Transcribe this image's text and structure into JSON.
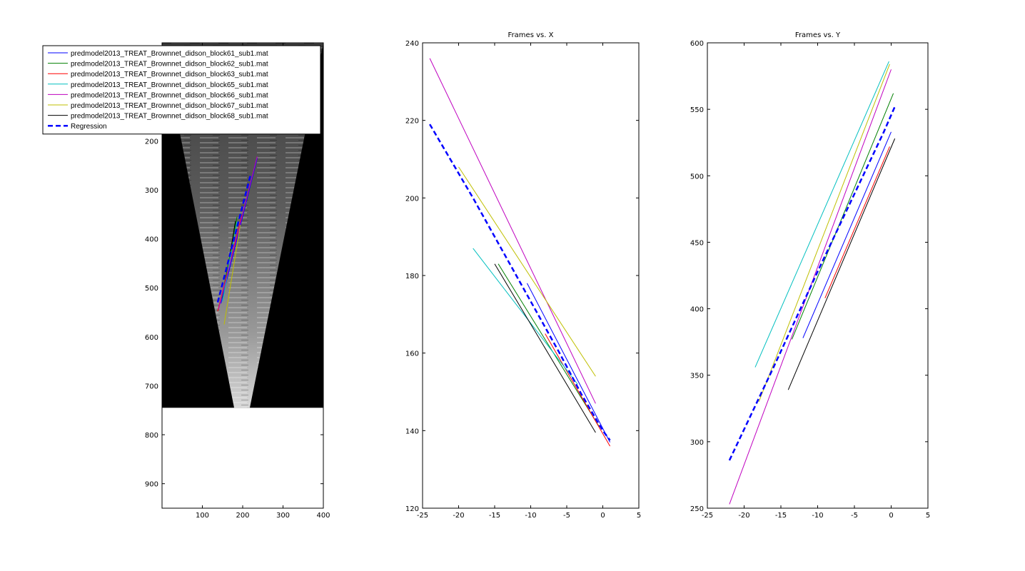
{
  "figure": {
    "legend_entries": [
      {
        "name": "predmodel2013_TREAT_Brownnet_didson_block61_sub1.mat",
        "color": "#0000ff",
        "style": "solid"
      },
      {
        "name": "predmodel2013_TREAT_Brownnet_didson_block62_sub1.mat",
        "color": "#008000",
        "style": "solid"
      },
      {
        "name": "predmodel2013_TREAT_Brownnet_didson_block63_sub1.mat",
        "color": "#ff0000",
        "style": "solid"
      },
      {
        "name": "predmodel2013_TREAT_Brownnet_didson_block65_sub1.mat",
        "color": "#00bfbf",
        "style": "solid"
      },
      {
        "name": "predmodel2013_TREAT_Brownnet_didson_block66_sub1.mat",
        "color": "#bf00bf",
        "style": "solid"
      },
      {
        "name": "predmodel2013_TREAT_Brownnet_didson_block67_sub1.mat",
        "color": "#bfbf00",
        "style": "solid"
      },
      {
        "name": "predmodel2013_TREAT_Brownnet_didson_block68_sub1.mat",
        "color": "#000000",
        "style": "solid"
      },
      {
        "name": "Regression",
        "color": "#0000ff",
        "style": "dashed"
      }
    ]
  },
  "chart_data": [
    {
      "type": "line",
      "title": "",
      "xlabel": "",
      "ylabel": "",
      "xlim": [
        0,
        400
      ],
      "ylim": [
        950,
        0
      ],
      "xticks": [
        100,
        200,
        300,
        400
      ],
      "yticks": [
        100,
        200,
        300,
        400,
        500,
        600,
        700,
        800,
        900
      ],
      "background_image": "sonar-fan",
      "image_extent": {
        "x": [
          0,
          400
        ],
        "y": [
          0,
          745
        ]
      },
      "legend_placement": "top-left",
      "series": [
        {
          "name": "predmodel2013_TREAT_Brownnet_didson_block61_sub1.mat",
          "color": "#0000ff",
          "x": [
            146,
            236
          ],
          "y": [
            532,
            235
          ]
        },
        {
          "name": "predmodel2013_TREAT_Brownnet_didson_block62_sub1.mat",
          "color": "#008000",
          "x": [
            148,
            186
          ],
          "y": [
            522,
            355
          ]
        },
        {
          "name": "predmodel2013_TREAT_Brownnet_didson_block63_sub1.mat",
          "color": "#ff0000",
          "x": [
            138,
            198
          ],
          "y": [
            548,
            352
          ]
        },
        {
          "name": "predmodel2013_TREAT_Brownnet_didson_block65_sub1.mat",
          "color": "#00bfbf",
          "x": [
            150,
            186
          ],
          "y": [
            528,
            365
          ]
        },
        {
          "name": "predmodel2013_TREAT_Brownnet_didson_block66_sub1.mat",
          "color": "#bf00bf",
          "x": [
            140,
            236
          ],
          "y": [
            544,
            232
          ]
        },
        {
          "name": "predmodel2013_TREAT_Brownnet_didson_block67_sub1.mat",
          "color": "#bfbf00",
          "x": [
            154,
            194
          ],
          "y": [
            575,
            372
          ]
        },
        {
          "name": "predmodel2013_TREAT_Brownnet_didson_block68_sub1.mat",
          "color": "#000000",
          "x": [
            170,
            182
          ],
          "y": [
            425,
            364
          ]
        },
        {
          "name": "Regression",
          "color": "#0000ff",
          "dashed": true,
          "x": [
            138,
            220
          ],
          "y": [
            530,
            268
          ]
        }
      ]
    },
    {
      "type": "line",
      "title": "Frames vs. X",
      "xlabel": "",
      "ylabel": "",
      "xlim": [
        -25,
        5
      ],
      "ylim": [
        120,
        240
      ],
      "xticks": [
        -25,
        -20,
        -15,
        -10,
        -5,
        0,
        5
      ],
      "yticks": [
        120,
        140,
        160,
        180,
        200,
        220,
        240
      ],
      "series": [
        {
          "name": "predmodel2013_TREAT_Brownnet_didson_block61_sub1.mat",
          "color": "#0000ff",
          "x": [
            -10.5,
            1.0
          ],
          "y": [
            178,
            137
          ]
        },
        {
          "name": "predmodel2013_TREAT_Brownnet_didson_block62_sub1.mat",
          "color": "#008000",
          "x": [
            -14.5,
            -0.5
          ],
          "y": [
            183,
            141
          ]
        },
        {
          "name": "predmodel2013_TREAT_Brownnet_didson_block63_sub1.mat",
          "color": "#ff0000",
          "x": [
            -8.0,
            1.0
          ],
          "y": [
            165,
            136
          ]
        },
        {
          "name": "predmodel2013_TREAT_Brownnet_didson_block65_sub1.mat",
          "color": "#00bfbf",
          "x": [
            -18.0,
            -3.5
          ],
          "y": [
            187,
            152
          ]
        },
        {
          "name": "predmodel2013_TREAT_Brownnet_didson_block66_sub1.mat",
          "color": "#bf00bf",
          "x": [
            -24.0,
            -1.0
          ],
          "y": [
            236,
            147
          ]
        },
        {
          "name": "predmodel2013_TREAT_Brownnet_didson_block67_sub1.mat",
          "color": "#bfbf00",
          "x": [
            -20.0,
            -1.0
          ],
          "y": [
            208,
            154
          ]
        },
        {
          "name": "predmodel2013_TREAT_Brownnet_didson_block68_sub1.mat",
          "color": "#000000",
          "x": [
            -15.0,
            -1.0
          ],
          "y": [
            183,
            139.5
          ]
        },
        {
          "name": "Regression",
          "color": "#0000ff",
          "dashed": true,
          "x": [
            -24,
            -21,
            -18,
            -15,
            -12,
            -9,
            -6,
            -3,
            0,
            1
          ],
          "y": [
            219,
            209.5,
            200,
            190,
            180,
            170,
            160,
            149.5,
            140,
            137.5
          ]
        }
      ]
    },
    {
      "type": "line",
      "title": "Frames vs. Y",
      "xlabel": "",
      "ylabel": "",
      "xlim": [
        -25,
        5
      ],
      "ylim": [
        250,
        600
      ],
      "xticks": [
        -25,
        -20,
        -15,
        -10,
        -5,
        0,
        5
      ],
      "yticks": [
        250,
        300,
        350,
        400,
        450,
        500,
        550,
        600
      ],
      "series": [
        {
          "name": "predmodel2013_TREAT_Brownnet_didson_block61_sub1.mat",
          "color": "#0000ff",
          "x": [
            -12.0,
            0.0
          ],
          "y": [
            378,
            533
          ]
        },
        {
          "name": "predmodel2013_TREAT_Brownnet_didson_block62_sub1.mat",
          "color": "#008000",
          "x": [
            -13.5,
            0.3
          ],
          "y": [
            377,
            562
          ]
        },
        {
          "name": "predmodel2013_TREAT_Brownnet_didson_block63_sub1.mat",
          "color": "#ff0000",
          "x": [
            -9.0,
            -0.2
          ],
          "y": [
            408,
            522
          ]
        },
        {
          "name": "predmodel2013_TREAT_Brownnet_didson_block65_sub1.mat",
          "color": "#00bfbf",
          "x": [
            -18.5,
            -0.3
          ],
          "y": [
            356,
            586
          ]
        },
        {
          "name": "predmodel2013_TREAT_Brownnet_didson_block66_sub1.mat",
          "color": "#bf00bf",
          "x": [
            -22.0,
            0.0
          ],
          "y": [
            253,
            580
          ]
        },
        {
          "name": "predmodel2013_TREAT_Brownnet_didson_block67_sub1.mat",
          "color": "#bfbf00",
          "x": [
            -18.0,
            -0.2
          ],
          "y": [
            330,
            584
          ]
        },
        {
          "name": "predmodel2013_TREAT_Brownnet_didson_block68_sub1.mat",
          "color": "#000000",
          "x": [
            -14.0,
            0.5
          ],
          "y": [
            339,
            528
          ]
        },
        {
          "name": "Regression",
          "color": "#0000ff",
          "dashed": true,
          "x": [
            -22,
            -19,
            -16,
            -13,
            -10,
            -7,
            -4,
            -1,
            0.5
          ],
          "y": [
            286,
            321,
            356,
            392,
            428,
            463,
            498,
            533,
            552
          ]
        }
      ]
    }
  ]
}
